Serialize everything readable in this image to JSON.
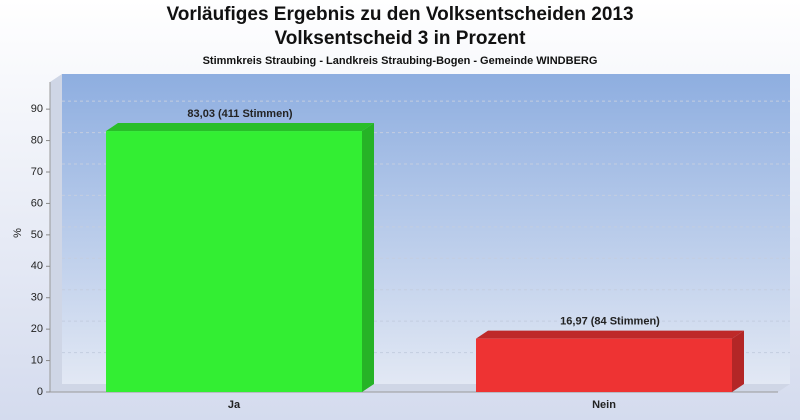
{
  "chart_data": {
    "type": "bar",
    "title": [
      "Vorläufiges Ergebnis zu den Volksentscheiden 2013",
      "Volksentscheid 3 in Prozent"
    ],
    "subtitle": "Stimmkreis Straubing - Landkreis Straubing-Bogen - Gemeinde WINDBERG",
    "y_label": "%",
    "categories": [
      "Ja",
      "Nein"
    ],
    "values": [
      83.03,
      16.97
    ],
    "value_labels": [
      "83,03 (411 Stimmen)",
      "16,97 (84 Stimmen)"
    ],
    "colors": [
      "#33ee33",
      "#ee3333"
    ],
    "ylim": [
      0,
      98
    ],
    "yticks": [
      0,
      10,
      20,
      30,
      40,
      50,
      60,
      70,
      80,
      90
    ],
    "grid": true
  }
}
